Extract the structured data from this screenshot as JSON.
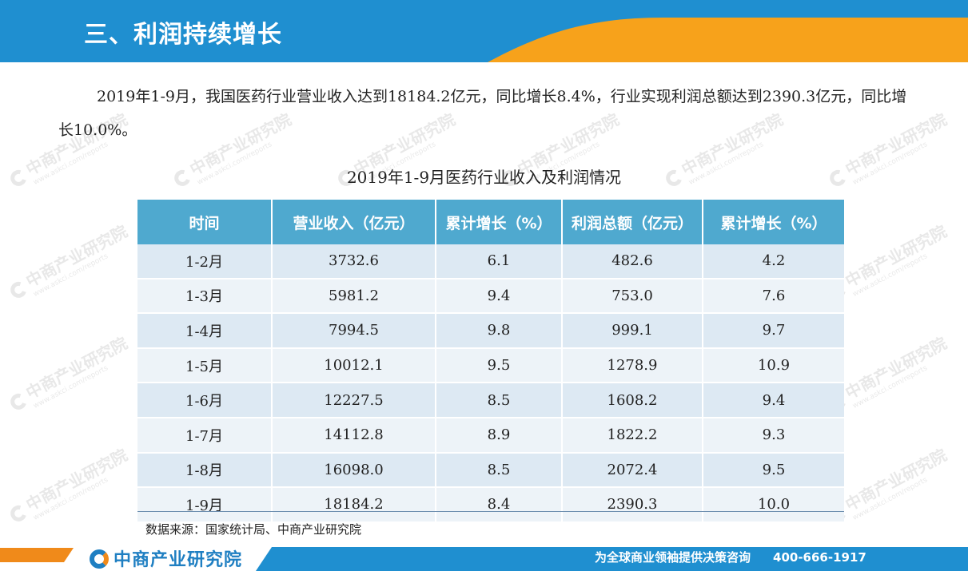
{
  "header": {
    "title": "三、利润持续增长"
  },
  "paragraph": "2019年1-9月，我国医药行业营业收入达到18184.2亿元，同比增长8.4%，行业实现利润总额达到2390.3亿元，同比增长10.0%。",
  "table": {
    "title": "2019年1-9月医药行业收入及利润情况",
    "headers": [
      "时间",
      "营业收入（亿元）",
      "累计增长（%）",
      "利润总额（亿元）",
      "累计增长（%）"
    ],
    "rows": [
      [
        "1-2月",
        "3732.6",
        "6.1",
        "482.6",
        "4.2"
      ],
      [
        "1-3月",
        "5981.2",
        "9.4",
        "753.0",
        "7.6"
      ],
      [
        "1-4月",
        "7994.5",
        "9.8",
        "999.1",
        "9.7"
      ],
      [
        "1-5月",
        "10012.1",
        "9.5",
        "1278.9",
        "10.9"
      ],
      [
        "1-6月",
        "12227.5",
        "8.5",
        "1608.2",
        "9.4"
      ],
      [
        "1-7月",
        "14112.8",
        "8.9",
        "1822.2",
        "9.3"
      ],
      [
        "1-8月",
        "16098.0",
        "8.5",
        "2072.4",
        "9.5"
      ],
      [
        "1-9月",
        "18184.2",
        "8.4",
        "2390.3",
        "10.0"
      ]
    ],
    "source": "数据来源：国家统计局、中商产业研究院"
  },
  "watermark": {
    "cn": "中商产业研究院",
    "en": "www.askci.com/reports"
  },
  "footer": {
    "brand": "中商产业研究院",
    "slogan": "为全球商业领袖提供决策咨询",
    "phone": "400-666-1917"
  },
  "colors": {
    "header_blue": "#1f8fd0",
    "header_orange": "#f7a21b",
    "table_header": "#4fa9cf",
    "row_odd": "#dde9f3",
    "row_even": "#edf3f8",
    "brand_blue": "#1f7fc2"
  }
}
